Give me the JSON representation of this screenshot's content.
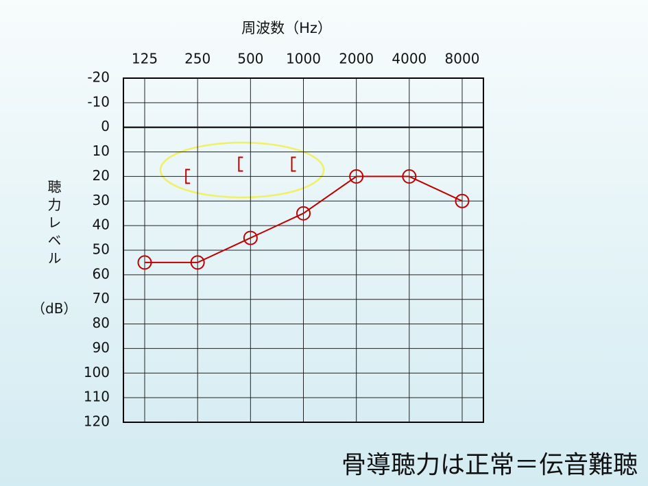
{
  "chart_data": {
    "type": "line",
    "x_label": "周波数（Hz）",
    "y_label": "聴力レベル",
    "y_label_unit": "（dB）",
    "categories": [
      "125",
      "250",
      "500",
      "1000",
      "2000",
      "4000",
      "8000"
    ],
    "series": [
      {
        "color": "#c00000",
        "marker": "circle",
        "values": [
          55,
          55,
          45,
          35,
          20,
          20,
          30
        ]
      },
      {
        "color": "#c00000",
        "marker": "bracket",
        "values": [
          null,
          20,
          15,
          15,
          null,
          null,
          null
        ]
      }
    ],
    "ylim": [
      -20,
      120
    ],
    "y_inverted": true,
    "yticks": [
      -20,
      -10,
      0,
      10,
      20,
      30,
      40,
      50,
      60,
      70,
      80,
      90,
      100,
      110,
      120
    ],
    "grid": true,
    "caption": "骨導聴力は正常＝伝音難聴"
  }
}
